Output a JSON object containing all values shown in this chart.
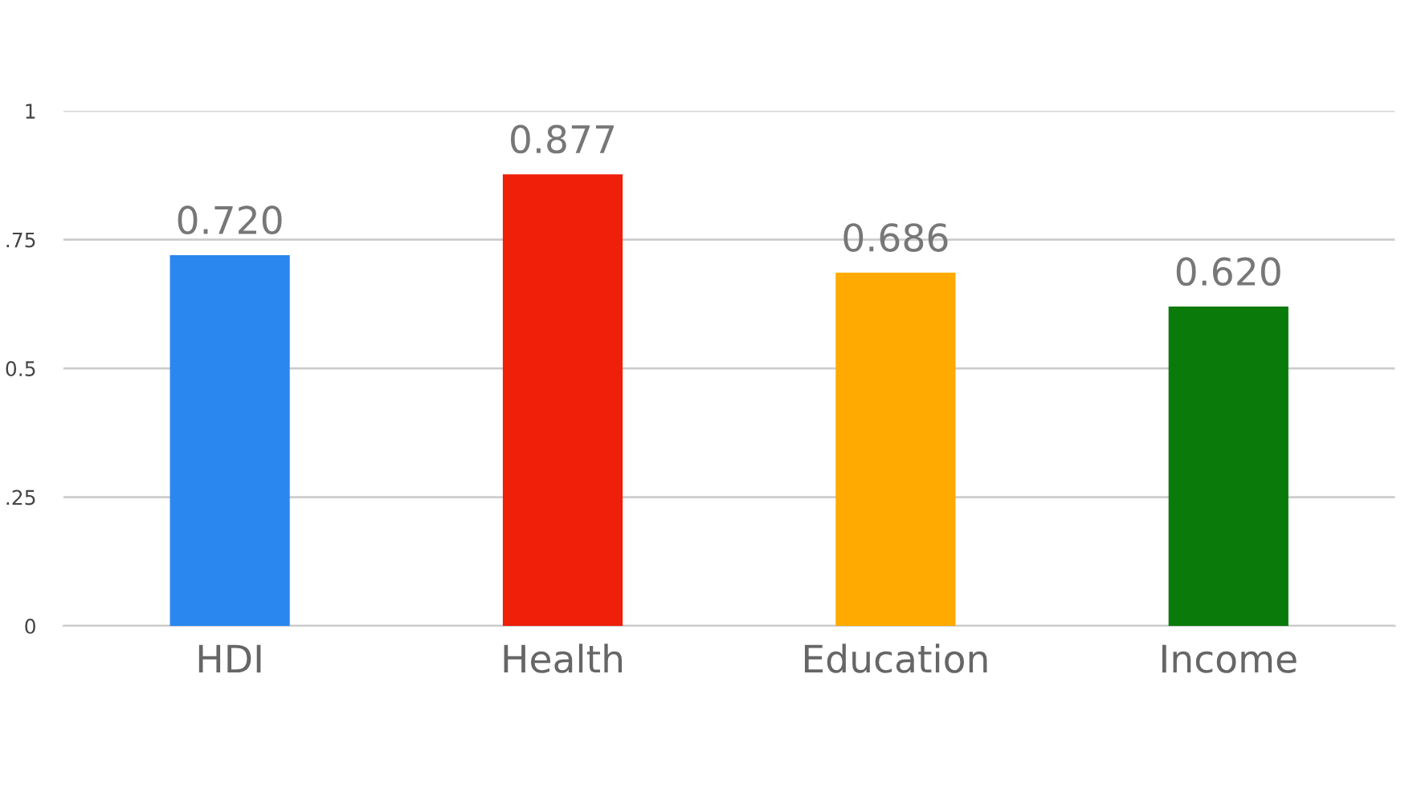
{
  "chart_data": {
    "type": "bar",
    "categories": [
      "HDI",
      "Health",
      "Education",
      "Income"
    ],
    "values": [
      0.72,
      0.877,
      0.686,
      0.62
    ],
    "colors": [
      "#2b87f0",
      "#ef1f0a",
      "#ffaa00",
      "#0a7a0a"
    ],
    "value_labels": [
      "0.720",
      "0.877",
      "0.686",
      "0.620"
    ],
    "ylim": [
      0,
      1
    ],
    "yticks": [
      0,
      {
        "value": 0.25,
        "label": ".25"
      },
      {
        "value": 0.5,
        "label": "0.5"
      },
      {
        "value": 0.75,
        "label": ".75"
      },
      1
    ],
    "grid": "y"
  }
}
